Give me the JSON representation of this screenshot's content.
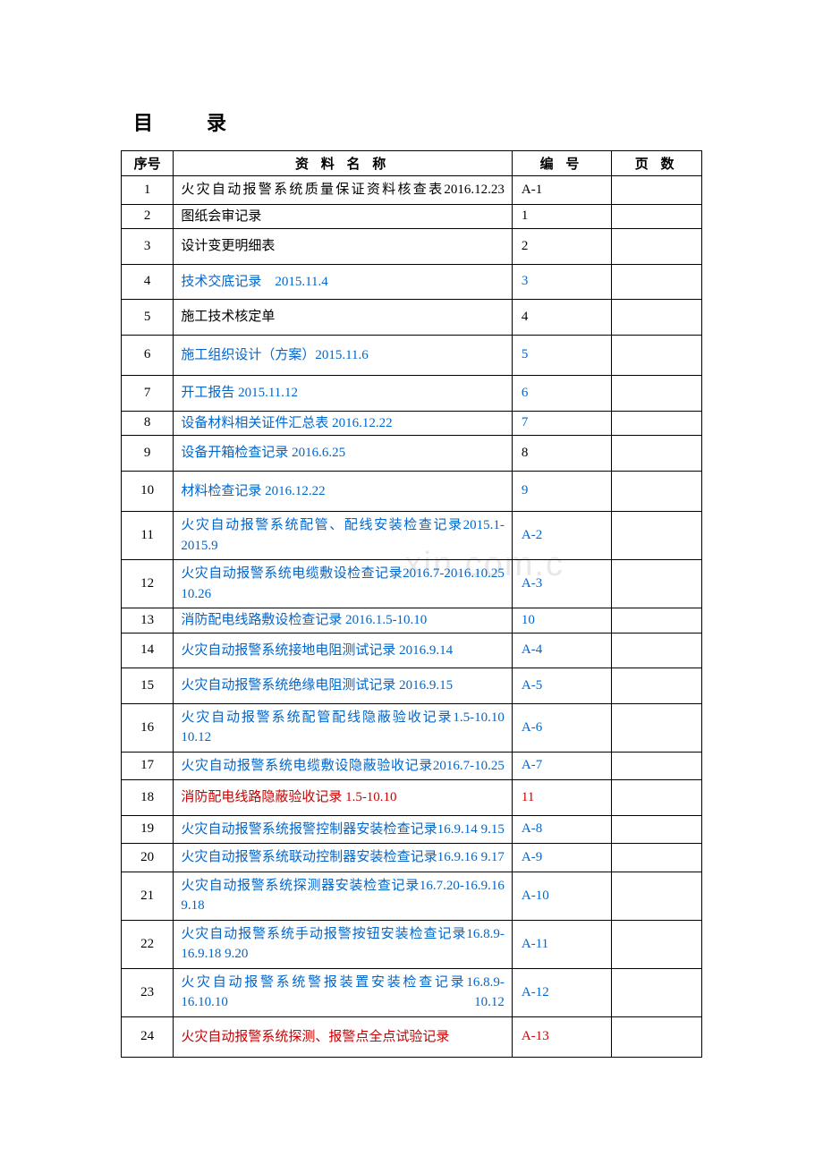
{
  "title": "目录",
  "columns": {
    "seq": "序号",
    "name": "资 料 名 称",
    "code": "编 号",
    "page": "页 数"
  },
  "colors": {
    "black": "#000000",
    "blue": "#0066cc",
    "red": "#cc0000"
  },
  "watermark": ".xin.com.c",
  "rows": [
    {
      "seq": "1",
      "name": "火灾自动报警系统质量保证资料核查表2016.12.23",
      "code": "A-1",
      "page": "",
      "nameColor": "black",
      "codeColor": "black",
      "height": "normal",
      "justify": true
    },
    {
      "seq": "2",
      "name": "图纸会审记录",
      "code": "1",
      "page": "",
      "nameColor": "black",
      "codeColor": "black",
      "height": "short",
      "justify": false
    },
    {
      "seq": "3",
      "name": "设计变更明细表",
      "code": "2",
      "page": "",
      "nameColor": "black",
      "codeColor": "black",
      "height": "tall",
      "justify": false
    },
    {
      "seq": "4",
      "name": "技术交底记录　2015.11.4",
      "code": "3",
      "page": "",
      "nameColor": "blue",
      "codeColor": "blue",
      "height": "tall",
      "justify": false
    },
    {
      "seq": "5",
      "name": "施工技术核定单",
      "code": "4",
      "page": "",
      "nameColor": "black",
      "codeColor": "black",
      "height": "tall",
      "justify": false
    },
    {
      "seq": "6",
      "name": "施工组织设计（方案）2015.11.6",
      "code": "5",
      "page": "",
      "nameColor": "blue",
      "codeColor": "blue",
      "height": "taller",
      "justify": false
    },
    {
      "seq": "7",
      "name": "开工报告 2015.11.12",
      "code": "6",
      "page": "",
      "nameColor": "blue",
      "codeColor": "blue",
      "height": "tall",
      "justify": false
    },
    {
      "seq": "8",
      "name": "设备材料相关证件汇总表 2016.12.22",
      "code": "7",
      "page": "",
      "nameColor": "blue",
      "codeColor": "blue",
      "height": "short",
      "justify": false
    },
    {
      "seq": "9",
      "name": "设备开箱检查记录 2016.6.25",
      "code": "8",
      "page": "",
      "nameColor": "blue",
      "codeColor": "black",
      "height": "tall",
      "justify": false
    },
    {
      "seq": "10",
      "name": "材料检查记录 2016.12.22",
      "code": "9",
      "page": "",
      "nameColor": "blue",
      "codeColor": "blue",
      "height": "taller",
      "justify": false
    },
    {
      "seq": "11",
      "name": "火灾自动报警系统配管、配线安装检查记录2015.1-2015.9",
      "code": "A-2",
      "page": "",
      "nameColor": "blue",
      "codeColor": "blue",
      "height": "normal",
      "justify": true
    },
    {
      "seq": "12",
      "name": "火灾自动报警系统电缆敷设检查记录2016.7-2016.10.25 10.26",
      "code": "A-3",
      "page": "",
      "nameColor": "blue",
      "codeColor": "blue",
      "height": "normal",
      "justify": true
    },
    {
      "seq": "13",
      "name": "消防配电线路敷设检查记录 2016.1.5-10.10",
      "code": "10",
      "page": "",
      "nameColor": "blue",
      "codeColor": "blue",
      "height": "short",
      "justify": false
    },
    {
      "seq": "14",
      "name": "火灾自动报警系统接地电阻测试记录 2016.9.14",
      "code": "A-4",
      "page": "",
      "nameColor": "blue",
      "codeColor": "blue",
      "height": "tall",
      "justify": false
    },
    {
      "seq": "15",
      "name": "火灾自动报警系统绝缘电阻测试记录 2016.9.15",
      "code": "A-5",
      "page": "",
      "nameColor": "blue",
      "codeColor": "blue",
      "height": "tall",
      "justify": false
    },
    {
      "seq": "16",
      "name": "火灾自动报警系统配管配线隐蔽验收记录1.5-10.10 10.12",
      "code": "A-6",
      "page": "",
      "nameColor": "blue",
      "codeColor": "blue",
      "height": "normal",
      "justify": true
    },
    {
      "seq": "17",
      "name": "火灾自动报警系统电缆敷设隐蔽验收记录2016.7-10.25",
      "code": "A-7",
      "page": "",
      "nameColor": "blue",
      "codeColor": "blue",
      "height": "normal",
      "justify": true
    },
    {
      "seq": "18",
      "name": "消防配电线路隐蔽验收记录 1.5-10.10",
      "code": "11",
      "page": "",
      "nameColor": "red",
      "codeColor": "red",
      "height": "tall",
      "justify": false
    },
    {
      "seq": "19",
      "name": "火灾自动报警系统报警控制器安装检查记录16.9.14  9.15",
      "code": "A-8",
      "page": "",
      "nameColor": "blue",
      "codeColor": "blue",
      "height": "normal",
      "justify": true
    },
    {
      "seq": "20",
      "name": "火灾自动报警系统联动控制器安装检查记录16.9.16  9.17",
      "code": "A-9",
      "page": "",
      "nameColor": "blue",
      "codeColor": "blue",
      "height": "normal",
      "justify": true
    },
    {
      "seq": "21",
      "name": "火灾自动报警系统探测器安装检查记录16.7.20-16.9.16 9.18",
      "code": "A-10",
      "page": "",
      "nameColor": "blue",
      "codeColor": "blue",
      "height": "normal",
      "justify": true
    },
    {
      "seq": "22",
      "name": "火灾自动报警系统手动报警按钮安装检查记录16.8.9-16.9.18 9.20",
      "code": "A-11",
      "page": "",
      "nameColor": "blue",
      "codeColor": "blue",
      "height": "normal",
      "justify": false
    },
    {
      "seq": "23",
      "name": "火灾自动报警系统警报装置安装检查记录16.8.9-16.10.10  10.12",
      "code": "A-12",
      "page": "",
      "nameColor": "blue",
      "codeColor": "blue",
      "height": "normal",
      "justify": true
    },
    {
      "seq": "24",
      "name": "火灾自动报警系统探测、报警点全点试验记录",
      "code": "A-13",
      "page": "",
      "nameColor": "red",
      "codeColor": "red",
      "height": "taller",
      "justify": false
    }
  ]
}
